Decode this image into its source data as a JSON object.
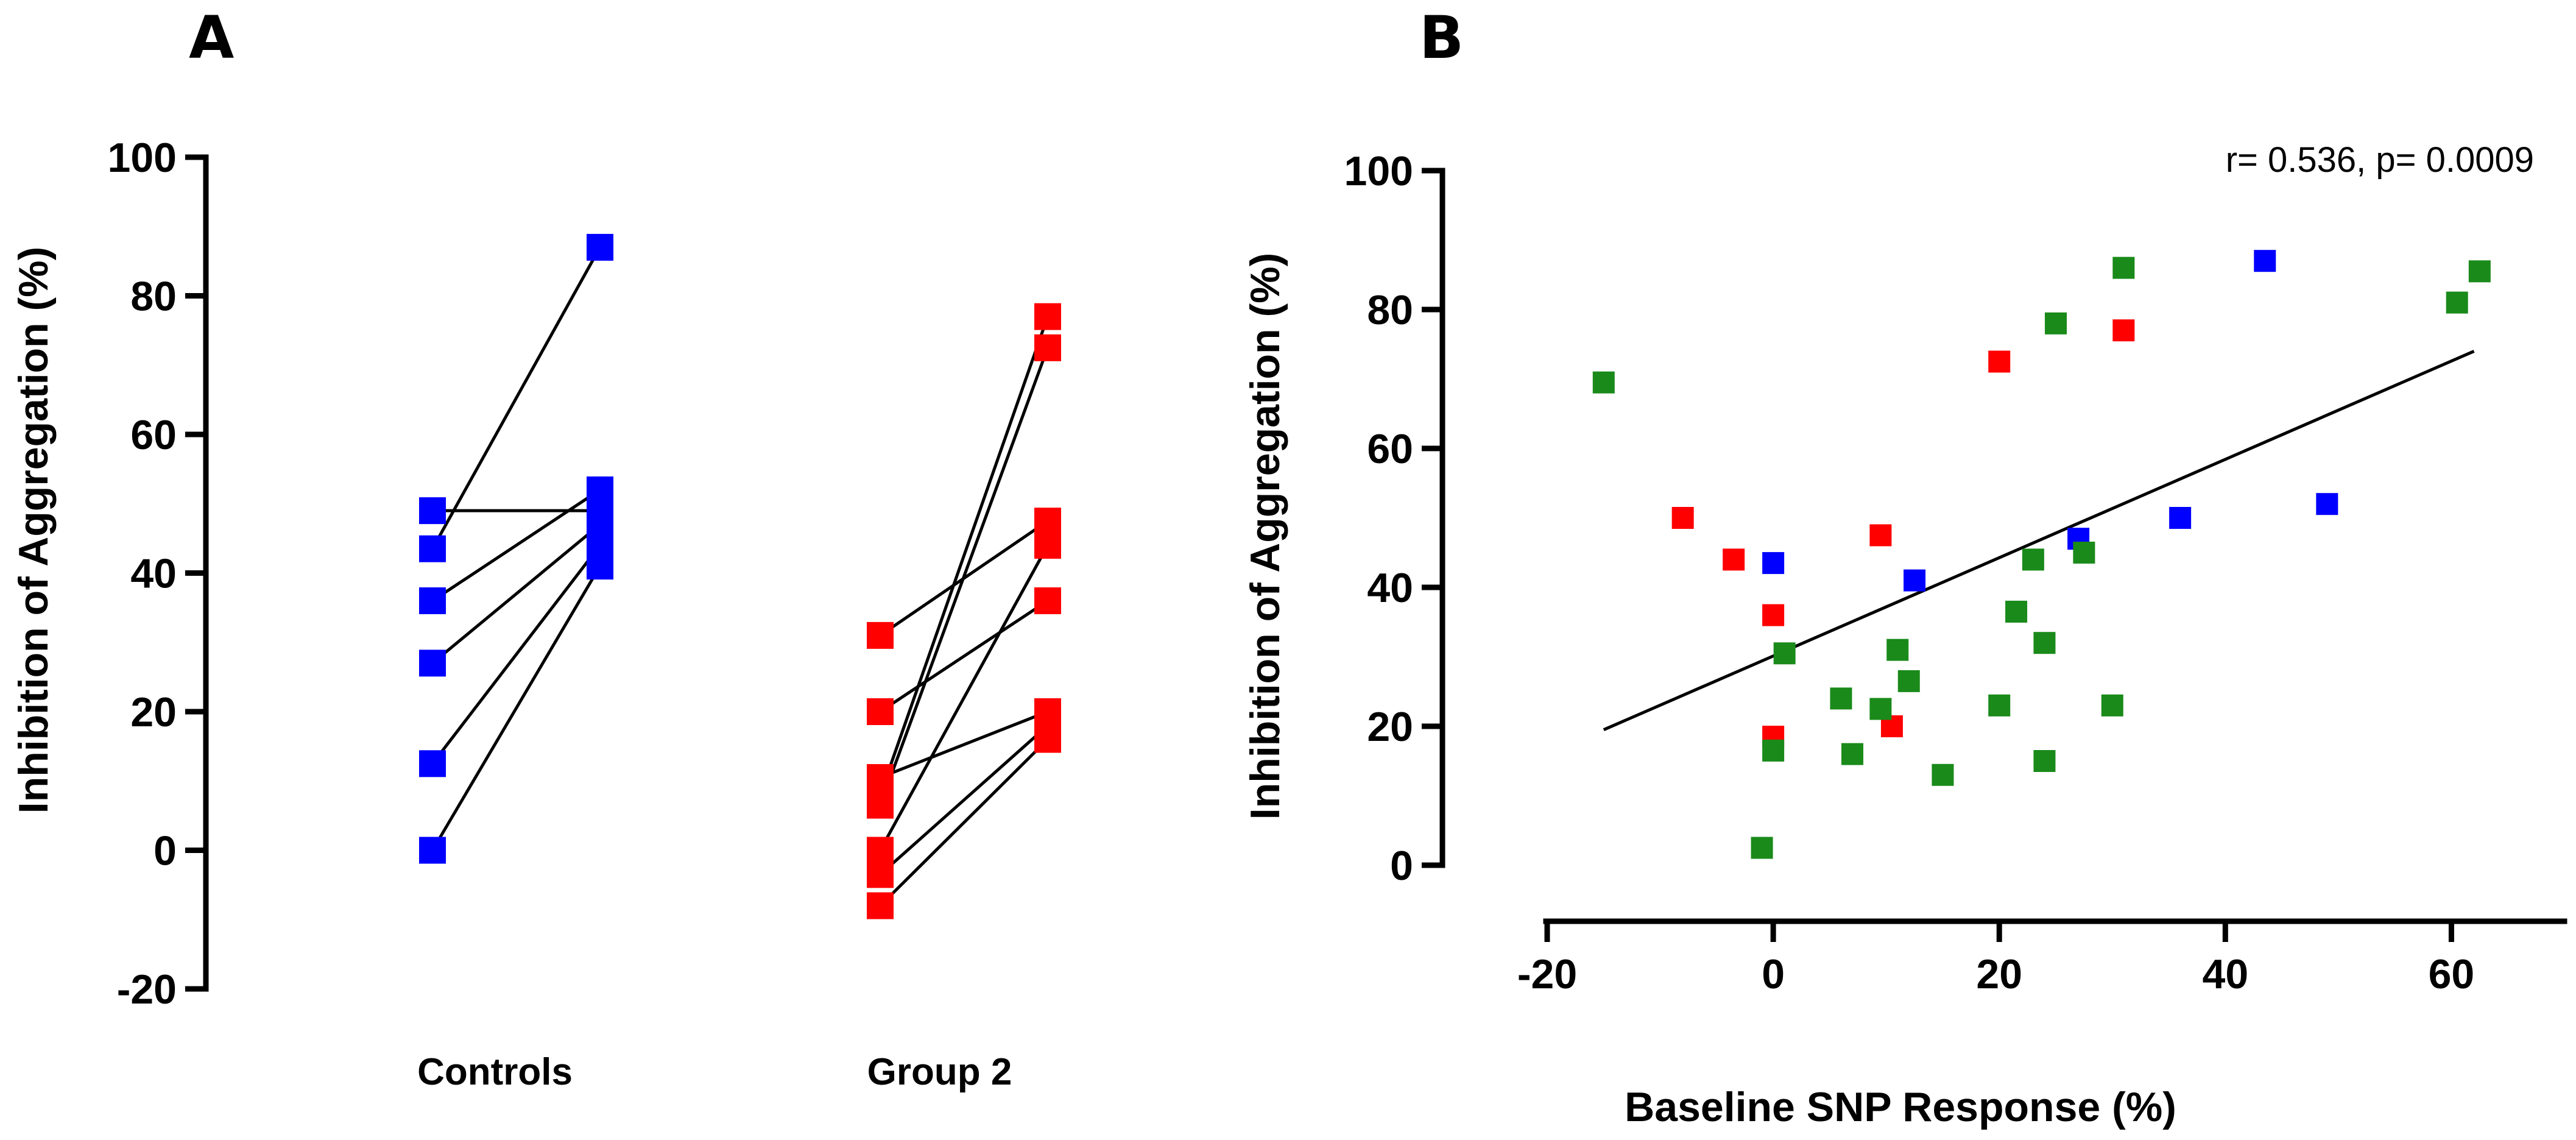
{
  "figure": {
    "panel_a_letter": "A",
    "panel_b_letter": "B"
  },
  "colors": {
    "blue": "#0000ff",
    "red": "#ff0000",
    "green": "#1a8a1a",
    "axis": "#000000"
  },
  "chart_data": [
    {
      "type": "scatter",
      "panel": "A",
      "subtype": "paired before-after",
      "title": "",
      "xlabel": "",
      "ylabel": "Inhibition of Aggregation (%)",
      "ylim": [
        -20,
        100
      ],
      "yticks": [
        -20,
        0,
        20,
        40,
        60,
        80,
        100
      ],
      "categories": [
        "Controls",
        "Group 2"
      ],
      "grid": false,
      "legend": "none",
      "groups": [
        {
          "category": "Controls",
          "color": "blue",
          "pairs": [
            {
              "before": 49,
              "after": 49
            },
            {
              "before": 43.5,
              "after": 87
            },
            {
              "before": 36,
              "after": 52
            },
            {
              "before": 27,
              "after": 47
            },
            {
              "before": 12.5,
              "after": 44
            },
            {
              "before": 0,
              "after": 41
            }
          ]
        },
        {
          "category": "Group 2",
          "color": "red",
          "pairs": [
            {
              "before": 31,
              "after": 47.5
            },
            {
              "before": 20,
              "after": 36
            },
            {
              "before": 10.5,
              "after": 20
            },
            {
              "before": 8,
              "after": 77
            },
            {
              "before": 6.5,
              "after": 72.5
            },
            {
              "before": 0,
              "after": 44
            },
            {
              "before": -3.5,
              "after": 18
            },
            {
              "before": -8,
              "after": 16
            }
          ]
        }
      ]
    },
    {
      "type": "scatter",
      "panel": "B",
      "title": "",
      "xlabel": "Baseline SNP Response (%)",
      "ylabel": "Inhibition of Aggregation (%)",
      "xlim": [
        -20,
        70
      ],
      "ylim": [
        0,
        100
      ],
      "xticks": [
        -20,
        0,
        20,
        40,
        60
      ],
      "yticks": [
        0,
        20,
        40,
        60,
        80,
        100
      ],
      "annotation": "r= 0.536, p= 0.0009",
      "grid": false,
      "legend": "none",
      "fit_line": {
        "x": [
          -15,
          62
        ],
        "y": [
          19.5,
          74
        ]
      },
      "series": [
        {
          "color": "blue",
          "points": [
            [
              0,
              43.5
            ],
            [
              12.5,
              41
            ],
            [
              27,
              47
            ],
            [
              36,
              50
            ],
            [
              43.5,
              87
            ],
            [
              49,
              52
            ]
          ]
        },
        {
          "color": "red",
          "points": [
            [
              -8,
              50
            ],
            [
              -3.5,
              44
            ],
            [
              0,
              36
            ],
            [
              0,
              18.5
            ],
            [
              9.5,
              47.5
            ],
            [
              10.5,
              20
            ],
            [
              20,
              72.5
            ],
            [
              31,
              77
            ]
          ]
        },
        {
          "color": "green",
          "points": [
            [
              -15,
              69.5
            ],
            [
              -1,
              2.5
            ],
            [
              0,
              16.5
            ],
            [
              1,
              30.5
            ],
            [
              6,
              24
            ],
            [
              7,
              16
            ],
            [
              9.5,
              22.5
            ],
            [
              11,
              31
            ],
            [
              12,
              26.5
            ],
            [
              15,
              13
            ],
            [
              20,
              23
            ],
            [
              21.5,
              36.5
            ],
            [
              23,
              44
            ],
            [
              24,
              32
            ],
            [
              24,
              15
            ],
            [
              25,
              78
            ],
            [
              27.5,
              45
            ],
            [
              30,
              23
            ],
            [
              31,
              86
            ],
            [
              60.5,
              81
            ],
            [
              62.5,
              85.5
            ]
          ]
        }
      ]
    }
  ]
}
